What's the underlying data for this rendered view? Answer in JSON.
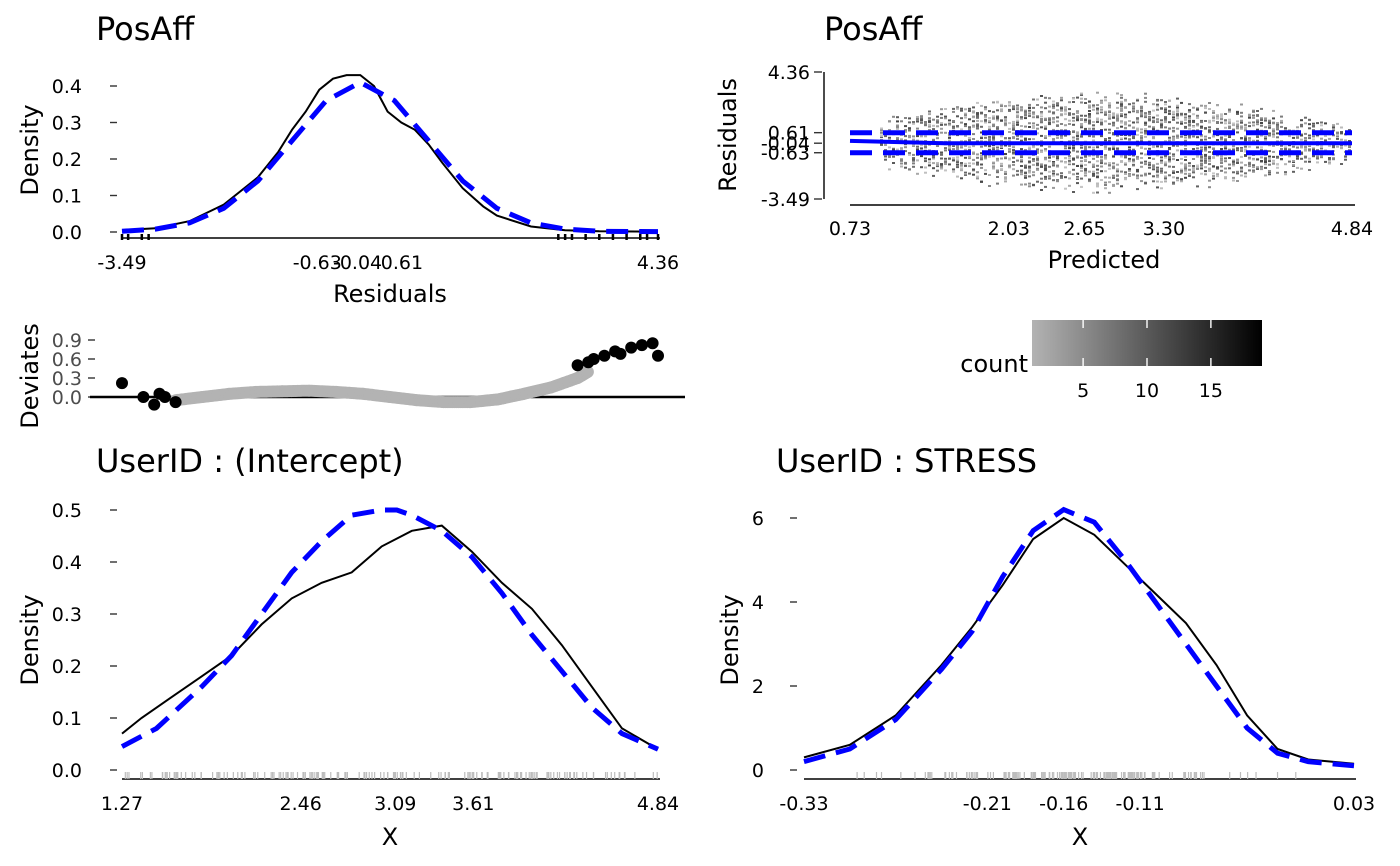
{
  "chart_data": [
    {
      "id": "resid-density",
      "type": "line",
      "title": "PosAff",
      "xlabel": "Residuals",
      "ylabel": "Density",
      "xlim": [
        -3.49,
        4.36
      ],
      "ylim": [
        0,
        0.45
      ],
      "x_ticks": [
        "-3.49",
        "-0.63",
        "-0.04",
        "0.61",
        "4.36"
      ],
      "x_tick_values": [
        -3.49,
        -0.63,
        -0.04,
        0.61,
        4.36
      ],
      "y_ticks": [
        "0.0",
        "0.1",
        "0.2",
        "0.3",
        "0.4"
      ],
      "y_tick_values": [
        0,
        0.1,
        0.2,
        0.3,
        0.4
      ],
      "series": [
        {
          "style": "solid",
          "color": "#000000",
          "x": [
            -3.49,
            -3.0,
            -2.5,
            -2.0,
            -1.5,
            -1.2,
            -1.0,
            -0.8,
            -0.6,
            -0.4,
            -0.2,
            0.0,
            0.2,
            0.4,
            0.6,
            0.8,
            1.0,
            1.2,
            1.5,
            1.8,
            2.0,
            2.5,
            3.0,
            3.5,
            4.36
          ],
          "y": [
            0.005,
            0.01,
            0.03,
            0.075,
            0.15,
            0.22,
            0.28,
            0.33,
            0.39,
            0.42,
            0.43,
            0.43,
            0.4,
            0.33,
            0.3,
            0.28,
            0.24,
            0.19,
            0.12,
            0.07,
            0.045,
            0.015,
            0.005,
            0.002,
            0.001
          ]
        },
        {
          "style": "dashed",
          "color": "#0000ff",
          "x": [
            -3.49,
            -3.0,
            -2.5,
            -2.0,
            -1.5,
            -1.0,
            -0.5,
            0.0,
            0.5,
            1.0,
            1.5,
            2.0,
            2.5,
            3.0,
            3.5,
            4.36
          ],
          "y": [
            0.002,
            0.008,
            0.025,
            0.065,
            0.14,
            0.25,
            0.36,
            0.41,
            0.36,
            0.25,
            0.14,
            0.065,
            0.025,
            0.008,
            0.002,
            0.001
          ]
        }
      ]
    },
    {
      "id": "resid-vs-pred",
      "type": "heatmap",
      "title": "PosAff",
      "xlabel": "Predicted",
      "ylabel": "Residuals",
      "xlim": [
        0.73,
        4.84
      ],
      "ylim": [
        -3.49,
        4.36
      ],
      "x_ticks": [
        "0.73",
        "2.03",
        "2.65",
        "3.30",
        "4.84"
      ],
      "x_tick_values": [
        0.73,
        2.03,
        2.65,
        3.3,
        4.84
      ],
      "y_ticks": [
        "-3.49",
        "-0.63",
        "-0.04",
        "0.61",
        "4.36"
      ],
      "y_tick_values": [
        -3.49,
        -0.63,
        -0.04,
        0.61,
        4.36
      ],
      "fit_line": {
        "x": [
          0.73,
          1.5,
          2.5,
          3.5,
          4.84
        ],
        "y": [
          0.1,
          -0.05,
          -0.04,
          -0.04,
          -0.04
        ]
      },
      "upper_band": {
        "x": [
          0.73,
          4.84
        ],
        "y": [
          0.61,
          0.61
        ]
      },
      "lower_band": {
        "x": [
          0.73,
          4.84
        ],
        "y": [
          -0.63,
          -0.63
        ]
      },
      "legend": {
        "title": "count",
        "ticks": [
          "5",
          "10",
          "15"
        ],
        "tick_values": [
          5,
          10,
          15
        ],
        "range": [
          1,
          19
        ],
        "low_color": "#b3b3b3",
        "high_color": "#000000"
      }
    },
    {
      "id": "deviates",
      "type": "scatter",
      "ylabel": "Deviates",
      "ylim": [
        -0.15,
        1.0
      ],
      "y_ticks": [
        "0.0",
        "0.3",
        "0.6",
        "0.9"
      ],
      "y_tick_values": [
        0,
        0.3,
        0.6,
        0.9
      ],
      "xlim": [
        0,
        1
      ],
      "gray_points": {
        "x": [
          0.1,
          0.15,
          0.2,
          0.25,
          0.3,
          0.35,
          0.4,
          0.45,
          0.5,
          0.55,
          0.6,
          0.65,
          0.7,
          0.75,
          0.8,
          0.85,
          0.87
        ],
        "y": [
          -0.05,
          0.0,
          0.05,
          0.08,
          0.09,
          0.1,
          0.08,
          0.05,
          0.0,
          -0.05,
          -0.08,
          -0.08,
          -0.04,
          0.05,
          0.15,
          0.3,
          0.4
        ]
      },
      "black_points": {
        "x": [
          0.0,
          0.04,
          0.06,
          0.07,
          0.08,
          0.1,
          0.85,
          0.87,
          0.88,
          0.9,
          0.92,
          0.93,
          0.95,
          0.97,
          0.99,
          1.0
        ],
        "y": [
          0.22,
          0.0,
          -0.12,
          0.05,
          0.0,
          -0.08,
          0.5,
          0.55,
          0.6,
          0.65,
          0.72,
          0.68,
          0.78,
          0.82,
          0.85,
          0.65
        ]
      }
    },
    {
      "id": "intercept-density",
      "type": "line",
      "title": "UserID : (Intercept)",
      "xlabel": "X",
      "ylabel": "Density",
      "xlim": [
        1.27,
        4.84
      ],
      "ylim": [
        0,
        0.5
      ],
      "x_ticks": [
        "1.27",
        "2.46",
        "3.09",
        "3.61",
        "4.84"
      ],
      "x_tick_values": [
        1.27,
        2.46,
        3.09,
        3.61,
        4.84
      ],
      "y_ticks": [
        "0.0",
        "0.1",
        "0.2",
        "0.3",
        "0.4",
        "0.5"
      ],
      "y_tick_values": [
        0,
        0.1,
        0.2,
        0.3,
        0.4,
        0.5
      ],
      "series": [
        {
          "style": "solid",
          "color": "#000000",
          "x": [
            1.27,
            1.4,
            1.6,
            1.8,
            2.0,
            2.2,
            2.4,
            2.6,
            2.8,
            3.0,
            3.2,
            3.4,
            3.6,
            3.8,
            4.0,
            4.2,
            4.4,
            4.6,
            4.84
          ],
          "y": [
            0.07,
            0.1,
            0.14,
            0.18,
            0.22,
            0.28,
            0.33,
            0.36,
            0.38,
            0.43,
            0.46,
            0.47,
            0.42,
            0.36,
            0.31,
            0.24,
            0.16,
            0.08,
            0.04
          ]
        },
        {
          "style": "dashed",
          "color": "#0000ff",
          "x": [
            1.27,
            1.5,
            1.8,
            2.0,
            2.2,
            2.4,
            2.6,
            2.8,
            3.0,
            3.1,
            3.2,
            3.4,
            3.6,
            3.8,
            4.0,
            4.2,
            4.4,
            4.6,
            4.84
          ],
          "y": [
            0.045,
            0.08,
            0.16,
            0.22,
            0.3,
            0.38,
            0.44,
            0.49,
            0.5,
            0.5,
            0.49,
            0.46,
            0.41,
            0.34,
            0.26,
            0.19,
            0.12,
            0.07,
            0.04
          ]
        }
      ]
    },
    {
      "id": "stress-density",
      "type": "line",
      "title": "UserID : STRESS",
      "xlabel": "X",
      "ylabel": "Density",
      "xlim": [
        -0.33,
        0.03
      ],
      "ylim": [
        0,
        6.4
      ],
      "x_ticks": [
        "-0.33",
        "-0.21",
        "-0.16",
        "-0.11",
        "0.03"
      ],
      "x_tick_values": [
        -0.33,
        -0.21,
        -0.16,
        -0.11,
        0.03
      ],
      "y_ticks": [
        "0",
        "2",
        "4",
        "6"
      ],
      "y_tick_values": [
        0,
        2,
        4,
        6
      ],
      "series": [
        {
          "style": "solid",
          "color": "#000000",
          "x": [
            -0.33,
            -0.3,
            -0.27,
            -0.24,
            -0.22,
            -0.2,
            -0.18,
            -0.16,
            -0.14,
            -0.12,
            -0.1,
            -0.08,
            -0.06,
            -0.04,
            -0.02,
            0.0,
            0.03
          ],
          "y": [
            0.3,
            0.6,
            1.3,
            2.5,
            3.4,
            4.4,
            5.5,
            6.0,
            5.6,
            4.9,
            4.2,
            3.5,
            2.5,
            1.3,
            0.5,
            0.25,
            0.15
          ]
        },
        {
          "style": "dashed",
          "color": "#0000ff",
          "x": [
            -0.33,
            -0.3,
            -0.27,
            -0.24,
            -0.22,
            -0.2,
            -0.18,
            -0.16,
            -0.14,
            -0.12,
            -0.1,
            -0.08,
            -0.06,
            -0.04,
            -0.02,
            0.0,
            0.03
          ],
          "y": [
            0.2,
            0.5,
            1.2,
            2.4,
            3.3,
            4.6,
            5.7,
            6.2,
            5.9,
            5.0,
            4.0,
            3.0,
            2.0,
            1.0,
            0.4,
            0.2,
            0.1
          ]
        }
      ]
    }
  ]
}
